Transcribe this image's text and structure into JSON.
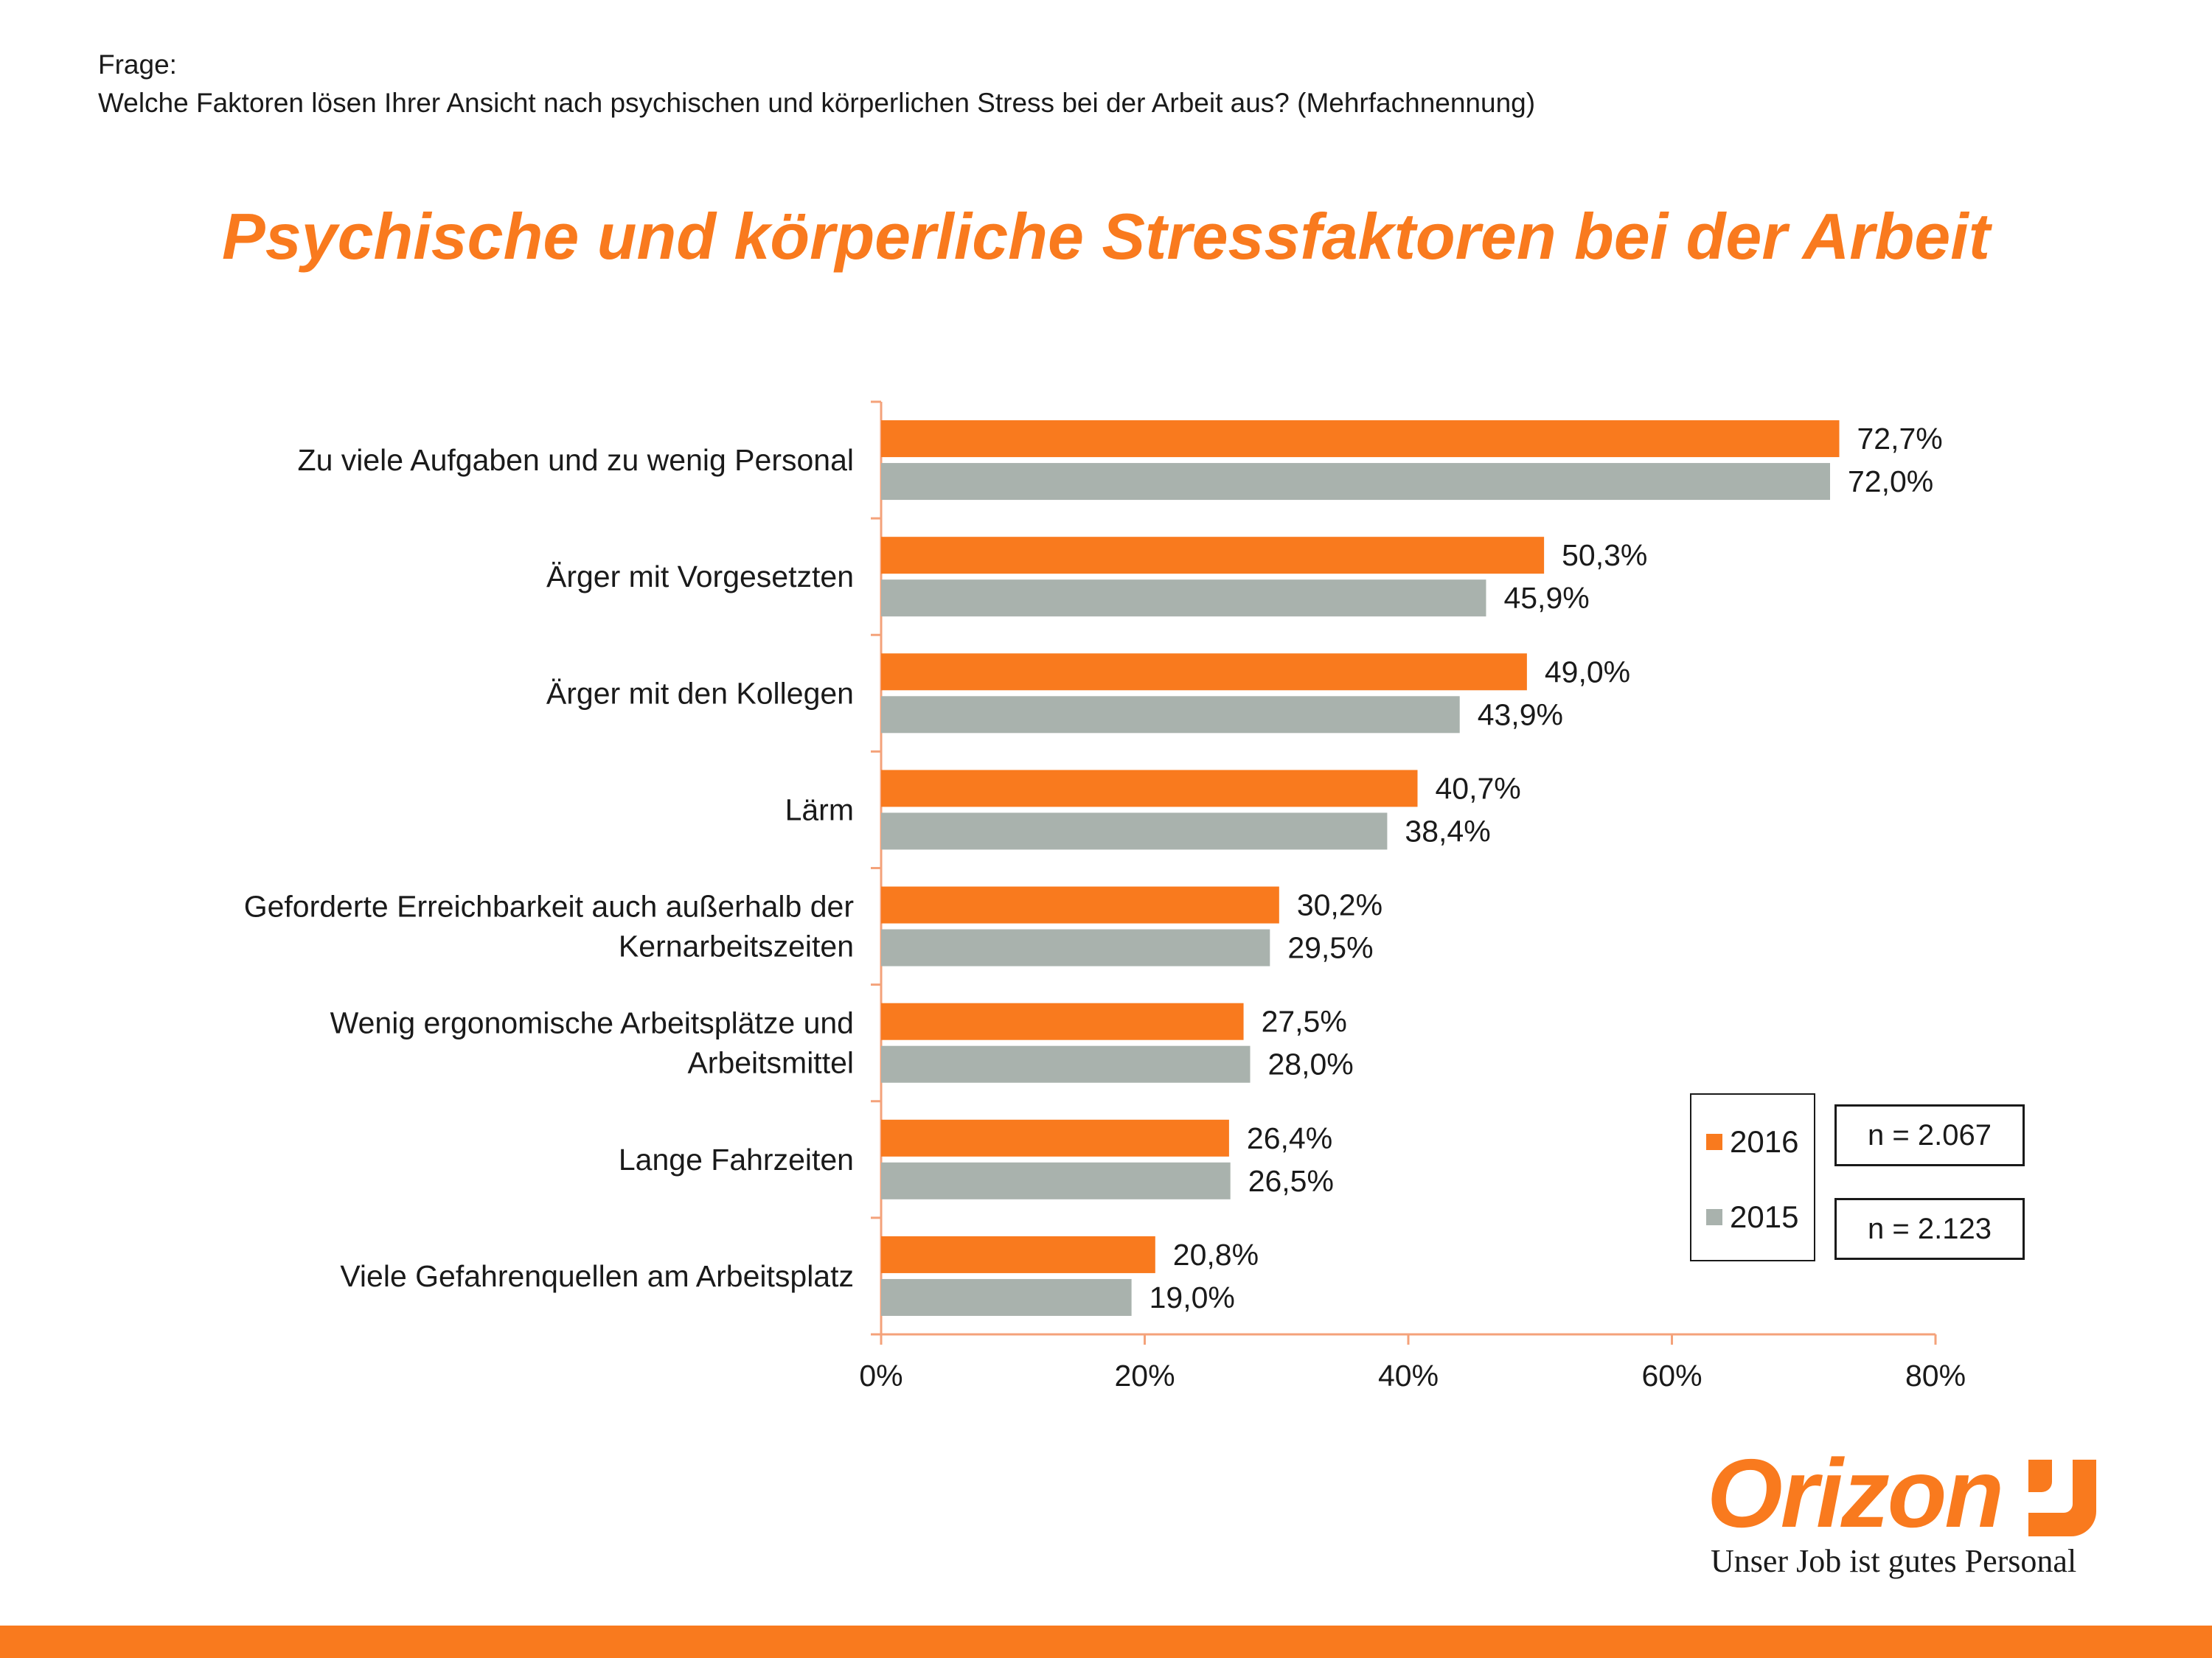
{
  "question": {
    "label": "Frage:",
    "text": "Welche Faktoren lösen Ihrer Ansicht nach psychischen und körperlichen Stress bei der Arbeit aus? (Mehrfachnennung)"
  },
  "title": "Psychische und körperliche Stressfaktoren bei der Arbeit",
  "chart_data": {
    "type": "bar",
    "orientation": "horizontal",
    "categories": [
      [
        "Zu viele Aufgaben und zu wenig Personal"
      ],
      [
        "Ärger mit Vorgesetzten"
      ],
      [
        "Ärger mit den Kollegen"
      ],
      [
        "Lärm"
      ],
      [
        "Geforderte Erreichbarkeit auch außerhalb der",
        "Kernarbeitszeiten"
      ],
      [
        "Wenig ergonomische Arbeitsplätze und",
        "Arbeitsmittel"
      ],
      [
        "Lange Fahrzeiten"
      ],
      [
        "Viele Gefahrenquellen am Arbeitsplatz"
      ]
    ],
    "series": [
      {
        "name": "2016",
        "color": "#f97a1e",
        "values": [
          72.7,
          50.3,
          49.0,
          40.7,
          30.2,
          27.5,
          26.4,
          20.8
        ],
        "labels": [
          "72,7%",
          "50,3%",
          "49,0%",
          "40,7%",
          "30,2%",
          "27,5%",
          "26,4%",
          "20,8%"
        ]
      },
      {
        "name": "2015",
        "color": "#a9b2ad",
        "values": [
          72.0,
          45.9,
          43.9,
          38.4,
          29.5,
          28.0,
          26.5,
          19.0
        ],
        "labels": [
          "72,0%",
          "45,9%",
          "43,9%",
          "38,4%",
          "29,5%",
          "28,0%",
          "26,5%",
          "19,0%"
        ]
      }
    ],
    "xlim": [
      0,
      80
    ],
    "xticks": [
      "0%",
      "20%",
      "40%",
      "60%",
      "80%"
    ],
    "axis_color": "#f4a27a",
    "legend_placement": "bottom-right",
    "grid": false
  },
  "legend": {
    "items": [
      {
        "label": "2016",
        "color": "#f97a1e"
      },
      {
        "label": "2015",
        "color": "#a9b2ad"
      }
    ]
  },
  "sample_sizes": [
    "n = 2.067",
    "n = 2.123"
  ],
  "logo": {
    "wordmark": "Orizon",
    "tagline": "Unser Job ist gutes Personal",
    "icon": "orizon-mark-icon",
    "color": "#f97a1e"
  },
  "footer": {
    "color": "#f97a1e"
  }
}
